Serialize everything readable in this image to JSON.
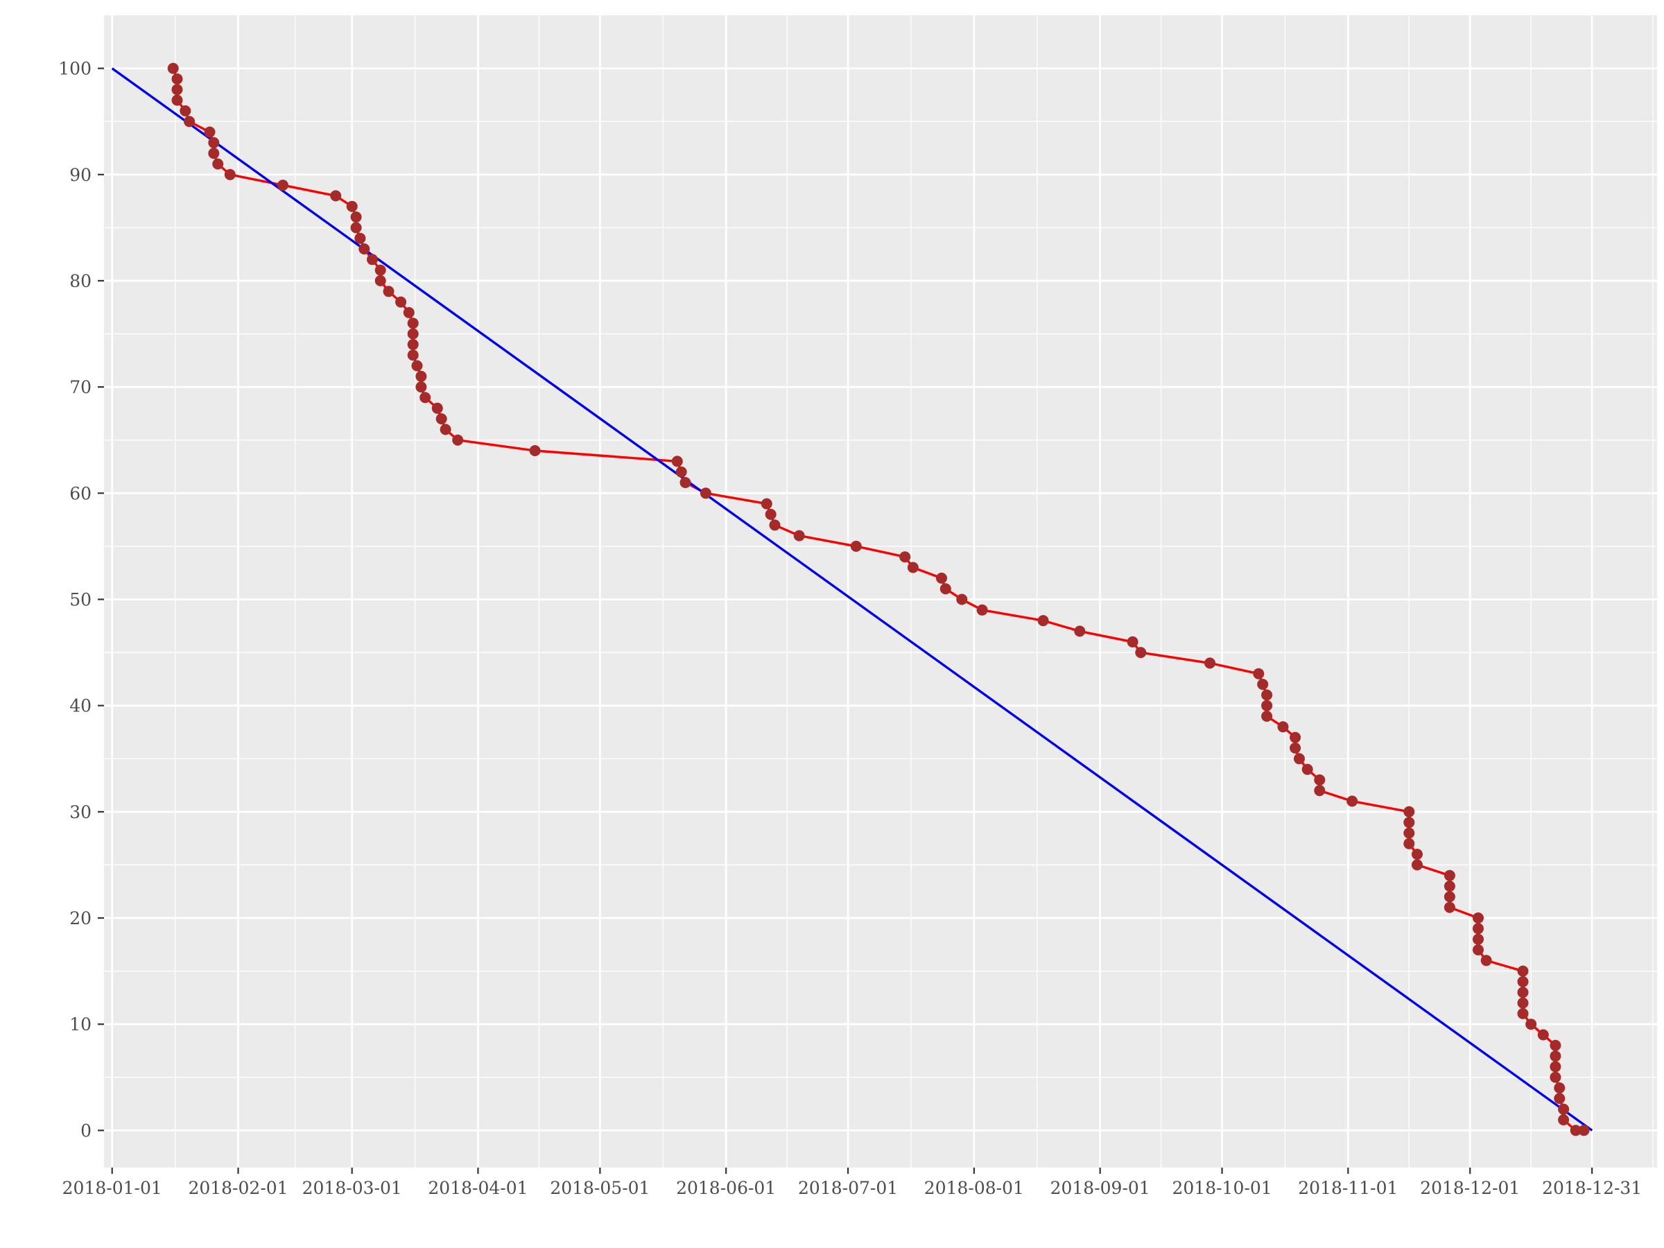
{
  "chart_data": {
    "type": "line",
    "title": "",
    "xlabel": "",
    "ylabel": "",
    "grid": true,
    "x_axis": {
      "type": "date",
      "range": [
        "2017-12-30",
        "2019-01-16"
      ],
      "ticks": [
        "2018-01-01",
        "2018-02-01",
        "2018-03-01",
        "2018-04-01",
        "2018-05-01",
        "2018-06-01",
        "2018-07-01",
        "2018-08-01",
        "2018-09-01",
        "2018-10-01",
        "2018-11-01",
        "2018-12-01",
        "2018-12-31"
      ],
      "tick_labels": [
        "2018-01-01",
        "2018-02-01",
        "2018-03-01",
        "2018-04-01",
        "2018-05-01",
        "2018-06-01",
        "2018-07-01",
        "2018-08-01",
        "2018-09-01",
        "2018-10-01",
        "2018-11-01",
        "2018-12-01",
        "2018-12-31"
      ]
    },
    "y_axis": {
      "range": [
        -3.5,
        105
      ],
      "ticks": [
        0,
        10,
        20,
        30,
        40,
        50,
        60,
        70,
        80,
        90,
        100
      ],
      "tick_labels": [
        "0",
        "10",
        "20",
        "30",
        "40",
        "50",
        "60",
        "70",
        "80",
        "90",
        "100"
      ]
    },
    "series": [
      {
        "role": "actual",
        "color": "#ff0000",
        "marker_color": "#a52a2a",
        "markers": true,
        "x": [
          "2018-01-16",
          "2018-01-17",
          "2018-01-17",
          "2018-01-17",
          "2018-01-19",
          "2018-01-20",
          "2018-01-25",
          "2018-01-26",
          "2018-01-26",
          "2018-01-27",
          "2018-01-30",
          "2018-02-12",
          "2018-02-25",
          "2018-02-29",
          "2018-03-02",
          "2018-03-02",
          "2018-03-03",
          "2018-03-04",
          "2018-03-06",
          "2018-03-08",
          "2018-03-08",
          "2018-03-10",
          "2018-03-13",
          "2018-03-15",
          "2018-03-16",
          "2018-03-16",
          "2018-03-16",
          "2018-03-16",
          "2018-03-17",
          "2018-03-18",
          "2018-03-18",
          "2018-03-19",
          "2018-03-22",
          "2018-03-23",
          "2018-03-24",
          "2018-03-27",
          "2018-04-15",
          "2018-05-20",
          "2018-05-21",
          "2018-05-22",
          "2018-05-27",
          "2018-06-11",
          "2018-06-12",
          "2018-06-13",
          "2018-06-19",
          "2018-07-03",
          "2018-07-15",
          "2018-07-17",
          "2018-07-24",
          "2018-07-25",
          "2018-07-29",
          "2018-08-03",
          "2018-08-18",
          "2018-08-27",
          "2018-09-09",
          "2018-09-11",
          "2018-09-28",
          "2018-10-10",
          "2018-10-11",
          "2018-10-12",
          "2018-10-12",
          "2018-10-12",
          "2018-10-16",
          "2018-10-19",
          "2018-10-19",
          "2018-10-20",
          "2018-10-22",
          "2018-10-25",
          "2018-10-25",
          "2018-11-02",
          "2018-11-16",
          "2018-11-16",
          "2018-11-16",
          "2018-11-16",
          "2018-11-18",
          "2018-11-18",
          "2018-11-26",
          "2018-11-26",
          "2018-11-26",
          "2018-11-26",
          "2018-12-03",
          "2018-12-03",
          "2018-12-03",
          "2018-12-03",
          "2018-12-05",
          "2018-12-14",
          "2018-12-14",
          "2018-12-14",
          "2018-12-14",
          "2018-12-14",
          "2018-12-16",
          "2018-12-19",
          "2018-12-22",
          "2018-12-22",
          "2018-12-22",
          "2018-12-22",
          "2018-12-23",
          "2018-12-23",
          "2018-12-24",
          "2018-12-24",
          "2018-12-27",
          "2018-12-29"
        ],
        "y": [
          100,
          99,
          98,
          97,
          96,
          95,
          94,
          93,
          92,
          91,
          90,
          89,
          88,
          87,
          86,
          85,
          84,
          83,
          82,
          81,
          80,
          79,
          78,
          77,
          76,
          75,
          74,
          73,
          72,
          71,
          70,
          69,
          68,
          67,
          66,
          65,
          64,
          63,
          62,
          61,
          60,
          59,
          58,
          57,
          56,
          55,
          54,
          53,
          52,
          51,
          50,
          49,
          48,
          47,
          46,
          45,
          44,
          43,
          42,
          41,
          40,
          39,
          38,
          37,
          36,
          35,
          34,
          33,
          32,
          31,
          30,
          29,
          28,
          27,
          26,
          25,
          24,
          23,
          22,
          21,
          20,
          19,
          18,
          17,
          16,
          15,
          14,
          13,
          12,
          11,
          10,
          9,
          8,
          7,
          6,
          5,
          4,
          3,
          2,
          1,
          0,
          0
        ]
      },
      {
        "role": "ideal",
        "color": "#0000ee",
        "markers": false,
        "x": [
          "2018-01-01",
          "2018-12-31"
        ],
        "y": [
          100,
          0
        ]
      }
    ]
  }
}
